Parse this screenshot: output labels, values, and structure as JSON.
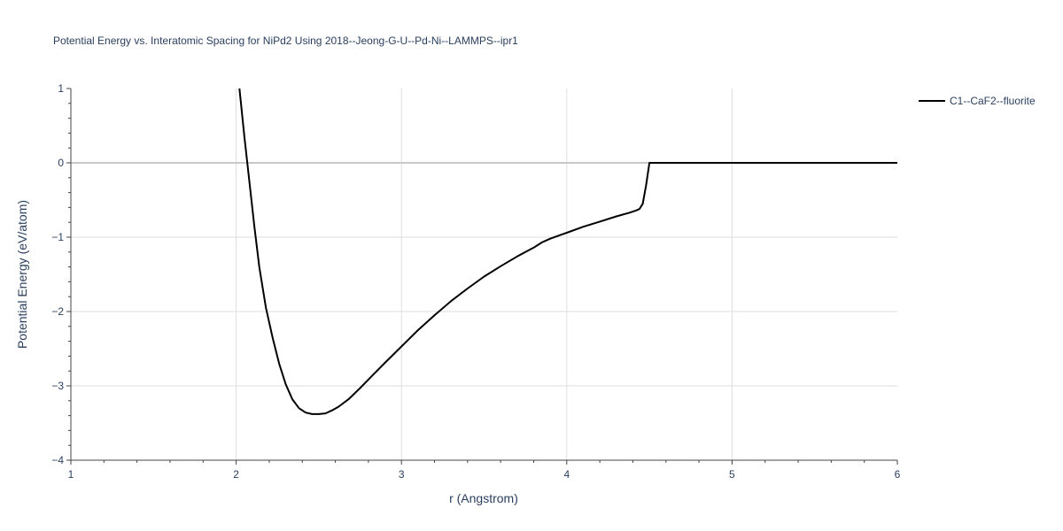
{
  "chart_data": {
    "type": "line",
    "title": "Potential Energy vs. Interatomic Spacing for NiPd2 Using 2018--Jeong-G-U--Pd-Ni--LAMMPS--ipr1",
    "xlabel": "r (Angstrom)",
    "ylabel": "Potential Energy (eV/atom)",
    "xlim": [
      1,
      6
    ],
    "ylim": [
      -4,
      1
    ],
    "x_ticks": [
      "1",
      "2",
      "3",
      "4",
      "5",
      "6"
    ],
    "y_ticks": [
      "1",
      "0",
      "−1",
      "−2",
      "−3",
      "−4"
    ],
    "grid": true,
    "legend_position": "top-right",
    "series": [
      {
        "name": "C1--CaF2--fluorite",
        "color": "#000000",
        "x": [
          2.02,
          2.05,
          2.08,
          2.11,
          2.14,
          2.18,
          2.22,
          2.26,
          2.3,
          2.34,
          2.38,
          2.42,
          2.46,
          2.5,
          2.54,
          2.58,
          2.62,
          2.68,
          2.75,
          2.82,
          2.9,
          3.0,
          3.1,
          3.2,
          3.3,
          3.4,
          3.5,
          3.6,
          3.7,
          3.8,
          3.85,
          3.9,
          4.0,
          4.1,
          4.2,
          4.3,
          4.38,
          4.42,
          4.44,
          4.46,
          4.48,
          4.5,
          4.55,
          5.0,
          5.5,
          6.0
        ],
        "values": [
          1.0,
          0.35,
          -0.25,
          -0.85,
          -1.4,
          -1.95,
          -2.35,
          -2.7,
          -2.98,
          -3.18,
          -3.3,
          -3.36,
          -3.38,
          -3.38,
          -3.37,
          -3.33,
          -3.28,
          -3.18,
          -3.03,
          -2.87,
          -2.69,
          -2.47,
          -2.25,
          -2.05,
          -1.86,
          -1.69,
          -1.53,
          -1.39,
          -1.26,
          -1.14,
          -1.07,
          -1.02,
          -0.94,
          -0.86,
          -0.79,
          -0.72,
          -0.67,
          -0.64,
          -0.62,
          -0.55,
          -0.3,
          0.0,
          0.0,
          0.0,
          0.0,
          0.0
        ]
      }
    ]
  }
}
